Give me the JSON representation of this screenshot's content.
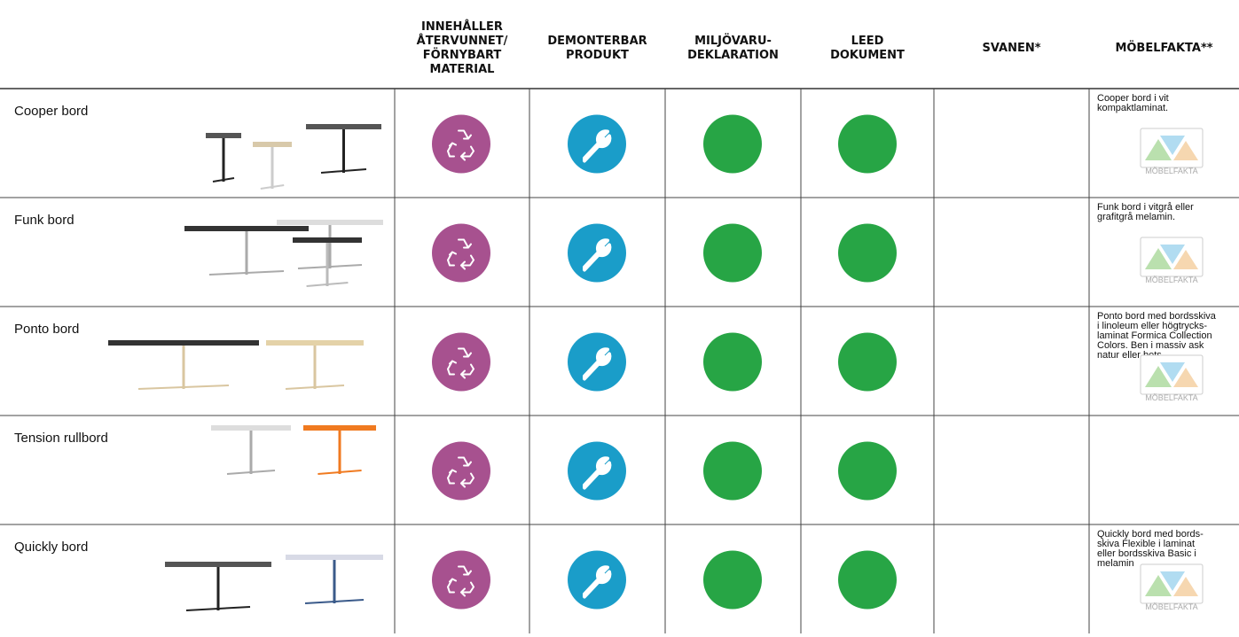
{
  "header": {
    "columns": [
      {
        "lines": [
          "INNEHÅLLER",
          "ÅTERVUNNET/",
          "FÖRNYBART",
          "MATERIAL"
        ]
      },
      {
        "lines": [
          "DEMONTERBAR",
          "PRODUKT"
        ]
      },
      {
        "lines": [
          "MILJÖVARU-",
          "DEKLARATION"
        ]
      },
      {
        "lines": [
          "LEED",
          "DOKUMENT"
        ]
      },
      {
        "lines": [
          "SVANEN*"
        ]
      },
      {
        "lines": [
          "MÖBELFAKTA**"
        ]
      }
    ]
  },
  "rows": [
    {
      "name": "Cooper bord",
      "description": [
        "Cooper bord i vit",
        "kompaktlaminat."
      ],
      "logo": "MÖBELFAKTA"
    },
    {
      "name": "Funk bord",
      "description": [
        "Funk bord i vitgrå eller",
        "grafitgrå melamin."
      ],
      "logo": "MÖBELFAKTA"
    },
    {
      "name": "Ponto bord",
      "description": [
        "Ponto bord med bordsskiva",
        "i linoleum eller högtrycks-",
        "laminat Formica Collection",
        "Colors. Ben i massiv ask",
        "natur eller bets."
      ],
      "logo": "MÖBELFAKTA"
    },
    {
      "name": "Tension rullbord"
    },
    {
      "name": "Quickly bord",
      "description": [
        "Quickly bord med bords-",
        "skiva Flexible i laminat",
        "eller bordsskiva Basic i",
        "melamin"
      ],
      "logo": "MÖBELFAKTA"
    }
  ]
}
